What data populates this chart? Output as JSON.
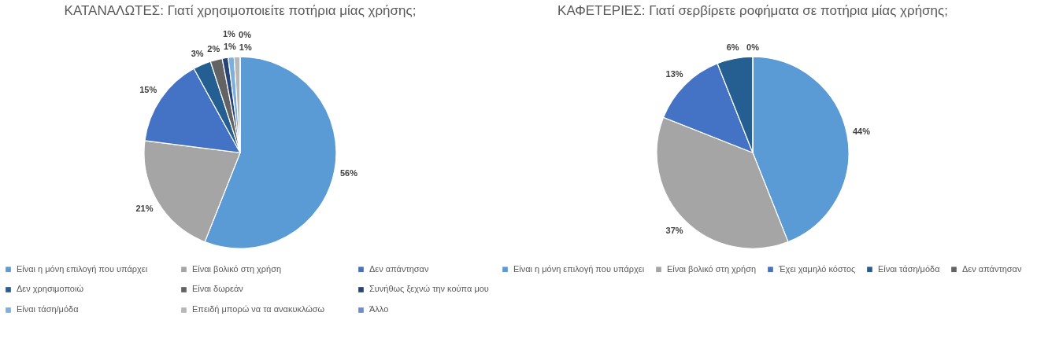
{
  "chart_data": [
    {
      "type": "pie",
      "title": "ΚΑΤΑΝΑΛΩΤΕΣ: Γιατί χρησιμοποιείτε ποτήρια μίας χρήσης;",
      "categories": [
        "Είναι η μόνη επιλογή που υπάρχει",
        "Είναι βολικό στη χρήση",
        "Δεν απάντησαν",
        "Δεν χρησιμοποιώ",
        "Είναι δωρεάν",
        "Συνήθως ξεχνώ την κούπα μου",
        "Είναι τάση/μόδα",
        "Επειδή μπορώ να τα ανακυκλώσω",
        "Άλλο"
      ],
      "values": [
        56,
        21,
        15,
        3,
        2,
        1,
        1,
        1,
        0
      ],
      "colors": [
        "#5b9bd5",
        "#a5a5a5",
        "#4472c4",
        "#255e91",
        "#636363",
        "#264478",
        "#7cafdd",
        "#b7b7b7",
        "#698ed0"
      ],
      "value_labels": [
        "56%",
        "21%",
        "15%",
        "3%",
        "2%",
        "1%",
        "1%",
        "1%",
        "0%"
      ],
      "legend": "bottom"
    },
    {
      "type": "pie",
      "title": "ΚΑΦΕΤΕΡΙΕΣ: Γιατί σερβίρετε ροφήματα σε ποτήρια μίας χρήσης;",
      "categories": [
        "Είναι η μόνη επιλογή που υπάρχει",
        "Είναι βολικό στη χρήση",
        "Έχει χαμηλό κόστος",
        "Είναι τάση/μόδα",
        "Δεν απάντησαν"
      ],
      "values": [
        44,
        37,
        13,
        6,
        0
      ],
      "colors": [
        "#5b9bd5",
        "#a5a5a5",
        "#4472c4",
        "#255e91",
        "#636363"
      ],
      "value_labels": [
        "44%",
        "37%",
        "13%",
        "6%",
        "0%"
      ],
      "legend": "bottom"
    }
  ]
}
